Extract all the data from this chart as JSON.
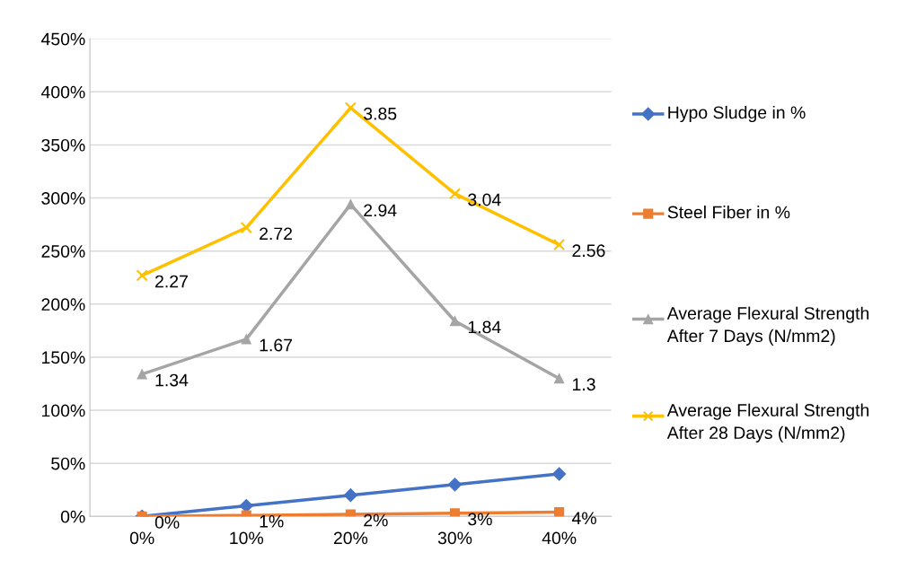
{
  "chart_data": {
    "type": "line",
    "categories": [
      "0%",
      "10%",
      "20%",
      "30%",
      "40%"
    ],
    "series": [
      {
        "name": "Hypo Sludge in %",
        "color": "#4472c4",
        "marker": "diamond",
        "values": [
          0,
          0.1,
          0.2,
          0.3,
          0.4
        ]
      },
      {
        "name": "Steel Fiber in %",
        "color": "#ed7d31",
        "marker": "square",
        "values": [
          0,
          0.01,
          0.02,
          0.03,
          0.04
        ],
        "value_labels": [
          "0%",
          "1%",
          "2%",
          "3%",
          "4%"
        ]
      },
      {
        "name": "Average Flexural Strength After 7 Days (N/mm2)",
        "color": "#a5a5a5",
        "marker": "triangle",
        "values": [
          1.34,
          1.67,
          2.94,
          1.84,
          1.3
        ],
        "value_labels": [
          "1.34",
          "1.67",
          "2.94",
          "1.84",
          "1.3"
        ]
      },
      {
        "name": "Average Flexural Strength After 28 Days (N/mm2)",
        "color": "#ffc000",
        "marker": "cross",
        "values": [
          2.27,
          2.72,
          3.85,
          3.04,
          2.56
        ],
        "value_labels": [
          "2.27",
          "2.72",
          "3.85",
          "3.04",
          "2.56"
        ]
      }
    ],
    "ylim": [
      0,
      4.5
    ],
    "yticks": [
      {
        "value": 0,
        "label": "0%"
      },
      {
        "value": 0.5,
        "label": "50%"
      },
      {
        "value": 1,
        "label": "100%"
      },
      {
        "value": 1.5,
        "label": "150%"
      },
      {
        "value": 2,
        "label": "200%"
      },
      {
        "value": 2.5,
        "label": "250%"
      },
      {
        "value": 3,
        "label": "300%"
      },
      {
        "value": 3.5,
        "label": "350%"
      },
      {
        "value": 4,
        "label": "400%"
      },
      {
        "value": 4.5,
        "label": "450%"
      }
    ],
    "grid": "y",
    "legend": "right",
    "line_style": "solid"
  }
}
